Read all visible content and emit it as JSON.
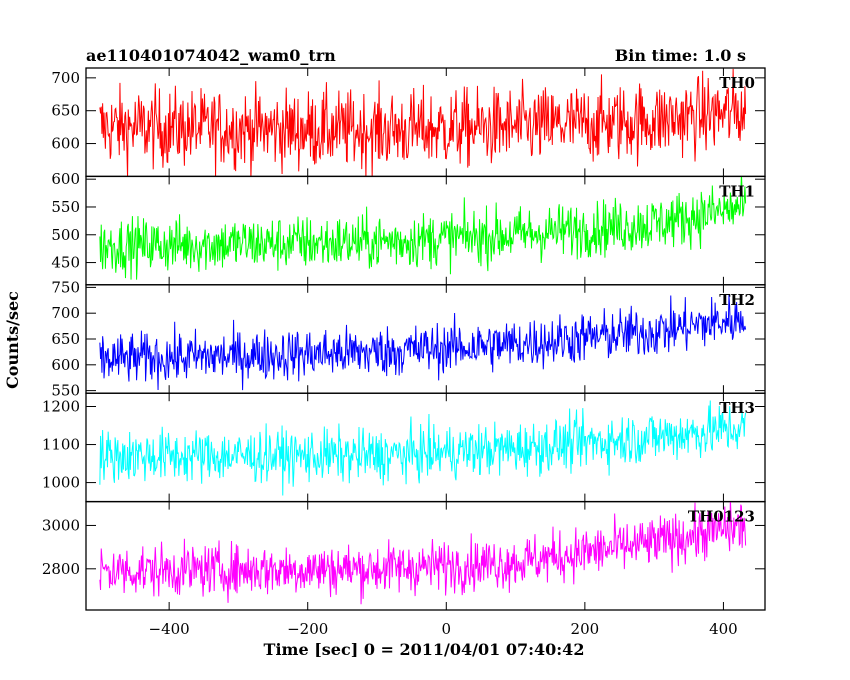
{
  "header": {
    "title": "ae110401074042_wam0_trn",
    "bin_time": "Bin time: 1.0 s"
  },
  "chart_data": {
    "type": "line",
    "xlabel": "Time [sec] 0 = 2011/04/01 07:40:42",
    "ylabel": "Counts/sec",
    "xlim": [
      -520,
      460
    ],
    "x_range": [
      -500,
      432
    ],
    "x_ticks": [
      -400,
      -200,
      0,
      200,
      400
    ],
    "x_tick_labels": [
      "−400",
      "−200",
      "0",
      "200",
      "400"
    ],
    "series": [
      {
        "name": "TH0",
        "color": "#ff0000",
        "ylim": [
          550,
          715
        ],
        "y_ticks": [
          600,
          650,
          700
        ],
        "trend": [
          [
            -500,
            625
          ],
          [
            -100,
            620
          ],
          [
            100,
            625
          ],
          [
            300,
            635
          ],
          [
            432,
            650
          ]
        ],
        "noise": 30
      },
      {
        "name": "TH1",
        "color": "#00ff00",
        "ylim": [
          410,
          605
        ],
        "y_ticks": [
          450,
          500,
          550,
          600
        ],
        "trend": [
          [
            -500,
            480
          ],
          [
            -100,
            487
          ],
          [
            100,
            500
          ],
          [
            300,
            520
          ],
          [
            432,
            550
          ]
        ],
        "noise": 25
      },
      {
        "name": "TH2",
        "color": "#0000ff",
        "ylim": [
          545,
          755
        ],
        "y_ticks": [
          550,
          600,
          650,
          700,
          750
        ],
        "trend": [
          [
            -500,
            610
          ],
          [
            -100,
            625
          ],
          [
            100,
            640
          ],
          [
            300,
            665
          ],
          [
            432,
            690
          ]
        ],
        "noise": 25
      },
      {
        "name": "TH3",
        "color": "#00ffff",
        "ylim": [
          950,
          1235
        ],
        "y_ticks": [
          1000,
          1100,
          1200
        ],
        "trend": [
          [
            -500,
            1070
          ],
          [
            -100,
            1070
          ],
          [
            100,
            1090
          ],
          [
            300,
            1120
          ],
          [
            432,
            1145
          ]
        ],
        "noise": 35
      },
      {
        "name": "TH0123",
        "color": "#ff00ff",
        "ylim": [
          2610,
          3110
        ],
        "y_ticks": [
          2800,
          3000
        ],
        "trend": [
          [
            -500,
            2790
          ],
          [
            -100,
            2800
          ],
          [
            100,
            2830
          ],
          [
            300,
            2920
          ],
          [
            432,
            3000
          ]
        ],
        "noise": 60
      }
    ]
  }
}
